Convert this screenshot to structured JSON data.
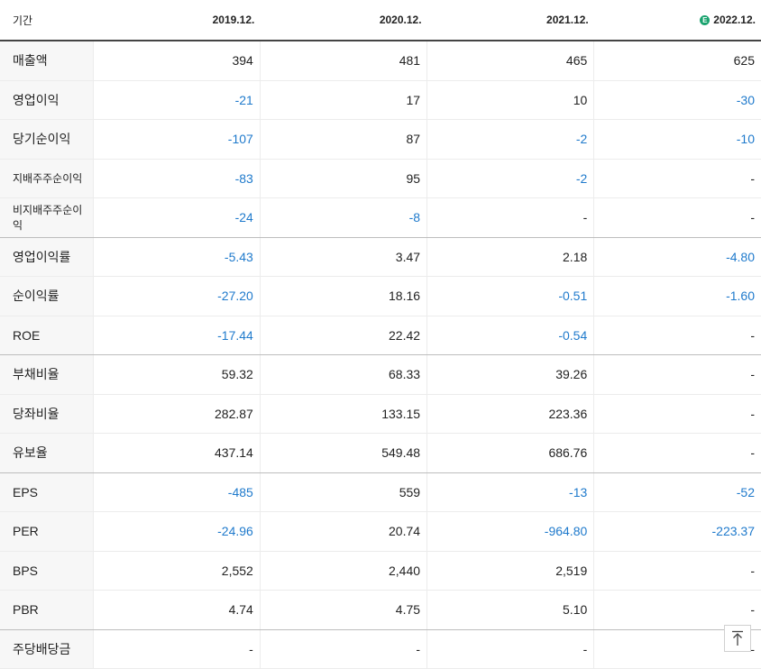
{
  "header": {
    "label": "기간",
    "periods": [
      "2019.12.",
      "2020.12.",
      "2021.12.",
      "2022.12."
    ],
    "estimate_marker": "E"
  },
  "rows": [
    {
      "label": "매출액",
      "values": [
        "394",
        "481",
        "465",
        "625"
      ],
      "small": false,
      "group_end": false
    },
    {
      "label": "영업이익",
      "values": [
        "-21",
        "17",
        "10",
        "-30"
      ],
      "small": false,
      "group_end": false
    },
    {
      "label": "당기순이익",
      "values": [
        "-107",
        "87",
        "-2",
        "-10"
      ],
      "small": false,
      "group_end": false
    },
    {
      "label": "지배주주순이익",
      "values": [
        "-83",
        "95",
        "-2",
        "-"
      ],
      "small": true,
      "group_end": false
    },
    {
      "label": "비지배주주순이익",
      "values": [
        "-24",
        "-8",
        "-",
        "-"
      ],
      "small": true,
      "group_end": true
    },
    {
      "label": "영업이익률",
      "values": [
        "-5.43",
        "3.47",
        "2.18",
        "-4.80"
      ],
      "small": false,
      "group_end": false
    },
    {
      "label": "순이익률",
      "values": [
        "-27.20",
        "18.16",
        "-0.51",
        "-1.60"
      ],
      "small": false,
      "group_end": false
    },
    {
      "label": "ROE",
      "values": [
        "-17.44",
        "22.42",
        "-0.54",
        "-"
      ],
      "small": false,
      "group_end": true
    },
    {
      "label": "부채비율",
      "values": [
        "59.32",
        "68.33",
        "39.26",
        "-"
      ],
      "small": false,
      "group_end": false
    },
    {
      "label": "당좌비율",
      "values": [
        "282.87",
        "133.15",
        "223.36",
        "-"
      ],
      "small": false,
      "group_end": false
    },
    {
      "label": "유보율",
      "values": [
        "437.14",
        "549.48",
        "686.76",
        "-"
      ],
      "small": false,
      "group_end": true
    },
    {
      "label": "EPS",
      "values": [
        "-485",
        "559",
        "-13",
        "-52"
      ],
      "small": false,
      "group_end": false
    },
    {
      "label": "PER",
      "values": [
        "-24.96",
        "20.74",
        "-964.80",
        "-223.37"
      ],
      "small": false,
      "group_end": false
    },
    {
      "label": "BPS",
      "values": [
        "2,552",
        "2,440",
        "2,519",
        "-"
      ],
      "small": false,
      "group_end": false
    },
    {
      "label": "PBR",
      "values": [
        "4.74",
        "4.75",
        "5.10",
        "-"
      ],
      "small": false,
      "group_end": true
    },
    {
      "label": "주당배당금",
      "values": [
        "-",
        "-",
        "-",
        "-"
      ],
      "small": false,
      "group_end": false
    }
  ],
  "colors": {
    "negative": "#1f7acc",
    "estimate_badge": "#1aa36f"
  },
  "scroll_top_icon": "arrow-up-to-top-icon"
}
